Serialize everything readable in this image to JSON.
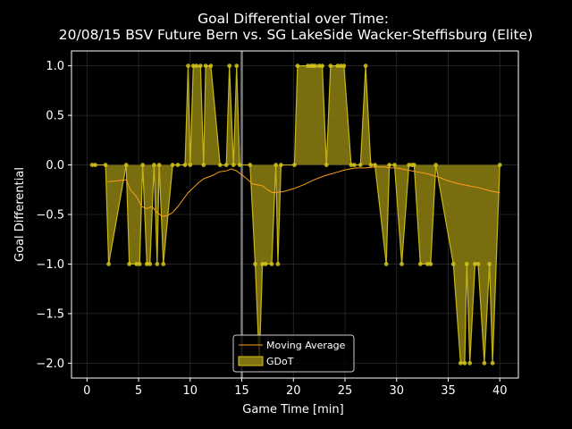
{
  "chart_data": {
    "type": "line",
    "title_line1": "Goal Differential over Time:",
    "title_line2": "20/08/15 BSV Future Bern  vs.  SG LakeSide Wacker-Steffisburg (Elite)",
    "xlabel": "Game Time [min]",
    "ylabel": "Goal Differential",
    "xlim": [
      -1.5,
      41.8
    ],
    "ylim": [
      -2.15,
      1.15
    ],
    "xticks": [
      0,
      5,
      10,
      15,
      20,
      25,
      30,
      35,
      40
    ],
    "yticks": [
      -2.0,
      -1.5,
      -1.0,
      -0.5,
      0.0,
      0.5,
      1.0
    ],
    "ytick_labels": [
      "−2.0",
      "−1.5",
      "−1.0",
      "−0.5",
      "0.0",
      "0.5",
      "1.0"
    ],
    "grid": true,
    "legend_position": "lower-center",
    "vertical_marker_x": 15,
    "series": [
      {
        "name": "GDoT",
        "color": "#d4c21a",
        "fill": "#7f7410",
        "x": [
          0.5,
          0.8,
          1.8,
          2.1,
          3.8,
          4.1,
          4.8,
          5.1,
          5.4,
          5.8,
          6.1,
          6.5,
          6.8,
          7.0,
          7.4,
          8.3,
          8.8,
          9.5,
          9.8,
          10.0,
          10.3,
          10.6,
          11.0,
          11.3,
          11.5,
          12.0,
          12.9,
          13.5,
          13.8,
          14.2,
          14.5,
          14.8,
          15.8,
          16.3,
          16.7,
          17.0,
          17.3,
          17.9,
          18.3,
          18.5,
          18.8,
          20.1,
          20.4,
          21.4,
          21.7,
          21.9,
          22.1,
          22.5,
          22.8,
          23.2,
          23.6,
          24.3,
          24.6,
          24.9,
          25.6,
          25.9,
          26.5,
          27.0,
          27.5,
          27.9,
          29.0,
          29.3,
          29.8,
          30.5,
          31.2,
          31.5,
          31.7,
          32.3,
          33.0,
          33.3,
          33.8,
          35.5,
          36.2,
          36.6,
          36.8,
          37.1,
          37.6,
          37.9,
          38.5,
          39.0,
          39.3,
          40.0
        ],
        "y": [
          0,
          0,
          0,
          -1,
          0,
          -1,
          -1,
          -1,
          0,
          -1,
          -1,
          0,
          -1,
          0,
          -1,
          0,
          0,
          0,
          1,
          0,
          1,
          1,
          1,
          0,
          1,
          1,
          0,
          0,
          1,
          0,
          1,
          0,
          0,
          -1,
          -2,
          -1,
          -1,
          -1,
          0,
          -1,
          0,
          0,
          1,
          1,
          1,
          1,
          1,
          1,
          1,
          0,
          1,
          1,
          1,
          1,
          0,
          0,
          0,
          1,
          0,
          0,
          -1,
          0,
          0,
          -1,
          0,
          0,
          0,
          -1,
          -1,
          -1,
          0,
          -1,
          -2,
          -2,
          -1,
          -2,
          -1,
          -1,
          -2,
          -1,
          -2,
          0
        ]
      },
      {
        "name": "Moving Average",
        "color": "#ff9f1a",
        "x": [
          2.0,
          3.0,
          3.8,
          4.2,
          4.8,
          5.3,
          5.8,
          6.3,
          6.8,
          7.3,
          7.8,
          8.3,
          8.8,
          9.3,
          9.8,
          10.3,
          10.8,
          11.3,
          11.8,
          12.3,
          12.8,
          13.5,
          14.0,
          14.5,
          15.0,
          15.5,
          16.0,
          16.5,
          17.0,
          17.5,
          18.0,
          19.0,
          20.0,
          21.0,
          22.0,
          23.0,
          24.0,
          25.0,
          26.0,
          27.0,
          28.0,
          28.8,
          29.3,
          30.0,
          31.0,
          32.0,
          33.0,
          34.0,
          35.0,
          36.0,
          37.0,
          38.0,
          39.0,
          40.0
        ],
        "y": [
          -0.17,
          -0.16,
          -0.15,
          -0.25,
          -0.32,
          -0.42,
          -0.44,
          -0.42,
          -0.48,
          -0.52,
          -0.51,
          -0.48,
          -0.42,
          -0.35,
          -0.28,
          -0.23,
          -0.18,
          -0.14,
          -0.12,
          -0.1,
          -0.07,
          -0.06,
          -0.04,
          -0.06,
          -0.1,
          -0.14,
          -0.19,
          -0.2,
          -0.21,
          -0.25,
          -0.28,
          -0.27,
          -0.24,
          -0.2,
          -0.15,
          -0.11,
          -0.08,
          -0.05,
          -0.03,
          -0.03,
          -0.02,
          -0.02,
          -0.03,
          -0.03,
          -0.05,
          -0.07,
          -0.09,
          -0.12,
          -0.16,
          -0.19,
          -0.21,
          -0.23,
          -0.26,
          -0.28
        ]
      }
    ]
  }
}
